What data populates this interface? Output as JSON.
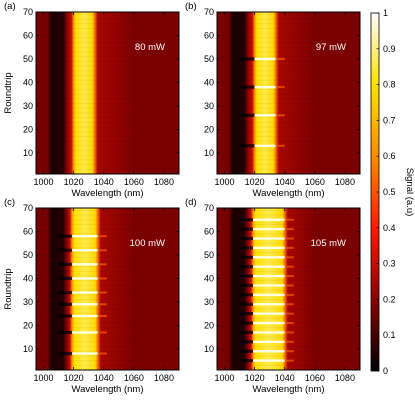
{
  "chart_data": [
    {
      "type": "heatmap",
      "panel_label": "(a)",
      "power_label": "80 mW",
      "xlabel": "Wavelength (nm)",
      "ylabel": "Roundtrip",
      "xlim": [
        995,
        1090
      ],
      "ylim": [
        1,
        70
      ],
      "xticks": [
        1000,
        1020,
        1040,
        1060,
        1080
      ],
      "yticks": [
        10,
        20,
        30,
        40,
        50,
        60,
        70
      ],
      "band": {
        "dark_start": 1004,
        "dark_end": 1014,
        "bright_start": 1020,
        "bright_end": 1034
      },
      "dips": []
    },
    {
      "type": "heatmap",
      "panel_label": "(b)",
      "power_label": "97 mW",
      "xlabel": "Wavelength (nm)",
      "ylabel": "",
      "xlim": [
        995,
        1090
      ],
      "ylim": [
        1,
        70
      ],
      "xticks": [
        1000,
        1020,
        1040,
        1060,
        1080
      ],
      "yticks": [
        10,
        20,
        30,
        40,
        50,
        60,
        70
      ],
      "band": {
        "dark_start": 1004,
        "dark_end": 1014,
        "bright_start": 1020,
        "bright_end": 1034
      },
      "dips": [
        13,
        26,
        38,
        50
      ]
    },
    {
      "type": "heatmap",
      "panel_label": "(c)",
      "power_label": "100 mW",
      "xlabel": "Wavelength (nm)",
      "ylabel": "Roundtrip",
      "xlim": [
        995,
        1090
      ],
      "ylim": [
        1,
        70
      ],
      "xticks": [
        1000,
        1020,
        1040,
        1060,
        1080
      ],
      "yticks": [
        10,
        20,
        30,
        40,
        50,
        60,
        70
      ],
      "band": {
        "dark_start": 1004,
        "dark_end": 1014,
        "bright_start": 1019,
        "bright_end": 1036
      },
      "dips": [
        8,
        17,
        24,
        29,
        34,
        40,
        46,
        52,
        58
      ]
    },
    {
      "type": "heatmap",
      "panel_label": "(d)",
      "power_label": "105 mW",
      "xlabel": "Wavelength (nm)",
      "ylabel": "",
      "xlim": [
        995,
        1090
      ],
      "ylim": [
        1,
        70
      ],
      "xticks": [
        1000,
        1020,
        1040,
        1060,
        1080
      ],
      "yticks": [
        10,
        20,
        30,
        40,
        50,
        60,
        70
      ],
      "band": {
        "dark_start": 1004,
        "dark_end": 1014,
        "bright_start": 1019,
        "bright_end": 1040
      },
      "dips": [
        5,
        9,
        13,
        17,
        21,
        25,
        29,
        33,
        37,
        41,
        45,
        49,
        53,
        57,
        61,
        65
      ]
    }
  ],
  "colorbar": {
    "label": "Signal (a.u)",
    "range": [
      0,
      1
    ],
    "ticks": [
      "0",
      "0.1",
      "0.2",
      "0.3",
      "0.4",
      "0.5",
      "0.6",
      "0.7",
      "0.8",
      "0.9",
      "1"
    ],
    "colormap": [
      "#000000",
      "#8b0000",
      "#ff1a00",
      "#ff8c00",
      "#ffe100",
      "#ffffff"
    ]
  }
}
